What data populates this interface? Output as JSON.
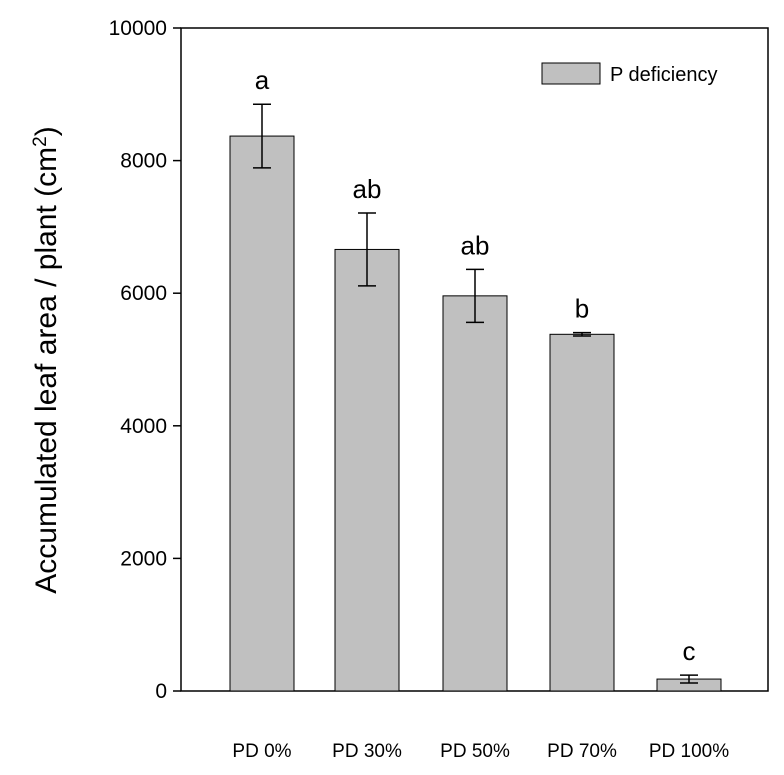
{
  "chart_data": {
    "type": "bar",
    "title": "",
    "xlabel": "",
    "ylabel_main": "Accumulated leaf area / plant (cm",
    "ylabel_sup": "2",
    "ylabel_close": ")",
    "ylim": [
      0,
      10000
    ],
    "yticks": [
      0,
      2000,
      4000,
      6000,
      8000,
      10000
    ],
    "ytick_labels": [
      "0",
      "2000",
      "4000",
      "6000",
      "8000",
      "10000"
    ],
    "grid": false,
    "legend_position": "top-right",
    "categories": [
      "PD 0%",
      "PD 30%",
      "PD 50%",
      "PD 70%",
      "PD 100%"
    ],
    "series": [
      {
        "name": "P deficiency",
        "color": "#c0c0c0",
        "values": [
          8370,
          6660,
          5960,
          5380,
          180
        ],
        "errors": [
          480,
          550,
          400,
          25,
          60
        ],
        "significance": [
          "a",
          "ab",
          "ab",
          "b",
          "c"
        ]
      }
    ]
  }
}
